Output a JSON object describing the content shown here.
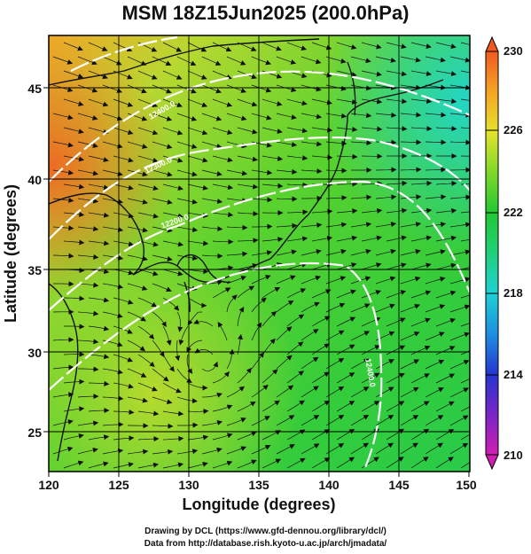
{
  "title": "MSM 18Z15Jun2025 (200.0hPa)",
  "x_axis": {
    "label": "Longitude (degrees)",
    "ticks": [
      "120",
      "125",
      "130",
      "135",
      "140",
      "145",
      "150"
    ],
    "range": [
      120,
      150
    ]
  },
  "y_axis": {
    "label": "Latitude  (degrees)",
    "ticks": [
      "25",
      "30",
      "35",
      "40",
      "45"
    ],
    "range": [
      22.5,
      47.5
    ]
  },
  "colorbar": {
    "ticks": [
      "230",
      "226",
      "222",
      "218",
      "214",
      "210"
    ],
    "range": [
      210,
      230
    ],
    "colors": [
      "#d01fb0",
      "#7a25c6",
      "#2436d0",
      "#1e8fe0",
      "#1fd0d6",
      "#20d07a",
      "#22c832",
      "#7ed82a",
      "#e4e22e",
      "#f5a424",
      "#ef5a22"
    ]
  },
  "contour_labels": [
    "12400.0",
    "12300.0",
    "12200.0",
    "12400.0"
  ],
  "credits": [
    "Drawing by DCL (https://www.gfd-dennou.org/library/dcl/)",
    "Data from http://database.rish.kyoto-u.ac.jp/arch/jmadata/"
  ]
}
